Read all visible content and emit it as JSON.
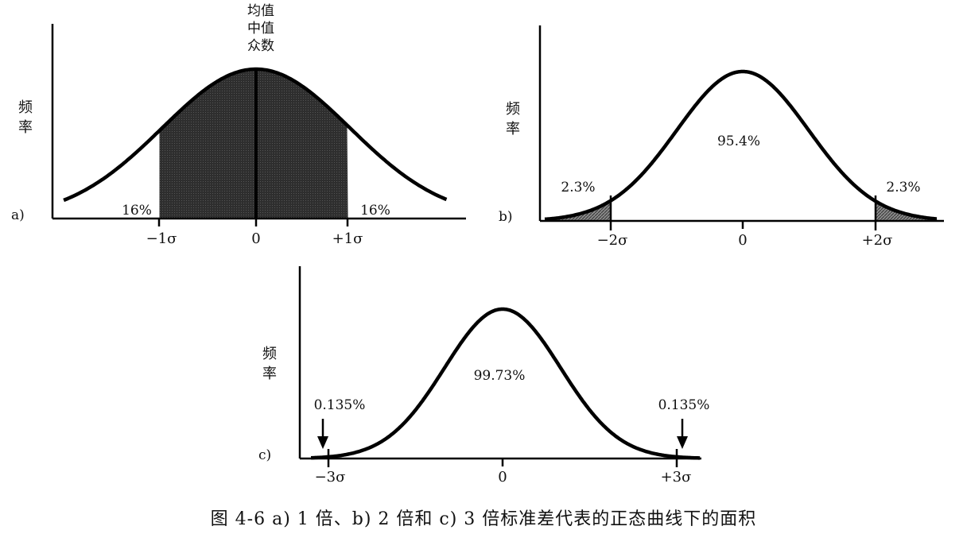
{
  "panels": [
    {
      "id": "a",
      "panel_label": "a)",
      "ylabel": "频\n率",
      "ticks": [
        "−1σ",
        "0",
        "+1σ"
      ],
      "center_label": "均值\n中值\n众数",
      "center_pct": "",
      "tail_left": "16%",
      "tail_right": "16%",
      "shade_sigma": 1,
      "shade_mode": "center",
      "arrows": false
    },
    {
      "id": "b",
      "panel_label": "b)",
      "ylabel": "频\n率",
      "ticks": [
        "−2σ",
        "0",
        "+2σ"
      ],
      "center_label": "",
      "center_pct": "95.4%",
      "tail_left": "2.3%",
      "tail_right": "2.3%",
      "shade_sigma": 2,
      "shade_mode": "tails",
      "arrows": false
    },
    {
      "id": "c",
      "panel_label": "c)",
      "ylabel": "频\n率",
      "ticks": [
        "−3σ",
        "0",
        "+3σ"
      ],
      "center_label": "",
      "center_pct": "99.73%",
      "tail_left": "0.135%",
      "tail_right": "0.135%",
      "shade_sigma": 3,
      "shade_mode": "tails",
      "arrows": true
    }
  ],
  "caption": "图 4-6   a) 1 倍、b) 2 倍和 c) 3 倍标准差代表的正态曲线下的面积",
  "colors": {
    "ink": "#000000",
    "shade": "#3a3a3a",
    "tail_shade": "#7a7a7a"
  }
}
